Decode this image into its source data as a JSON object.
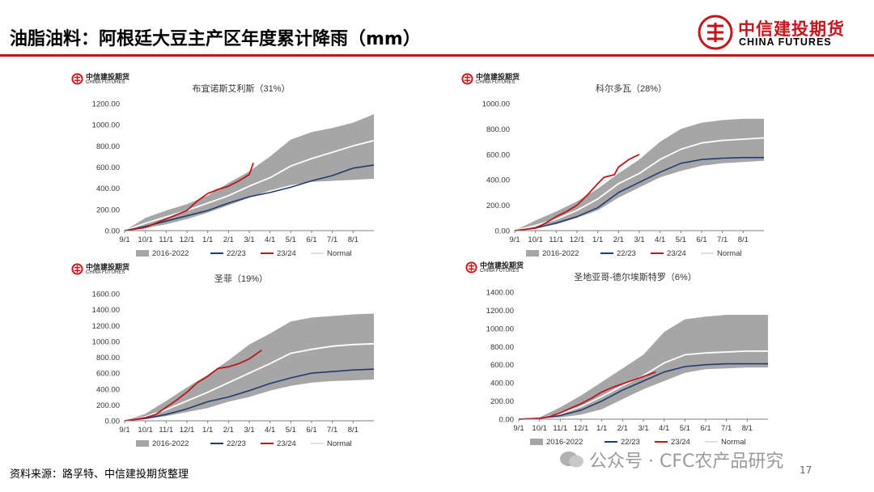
{
  "header": {
    "title": "油脂油料：阿根廷大豆主产区年度累计降雨（mm）",
    "brand_cn": "中信建投期货",
    "brand_en": "CHINA FUTURES",
    "accent": "#c3161c"
  },
  "mini_logo": {
    "cn": "中信建投期货",
    "en": "CHINA FUTURES"
  },
  "legend": {
    "band": "2016-2022",
    "s2223": "22/23",
    "s2324": "23/24",
    "normal": "Normal"
  },
  "colors": {
    "band": "#a6a6a6",
    "s2223": "#1f3b73",
    "s2324": "#c0141c",
    "normal": "#ffffff"
  },
  "x_ticks": [
    "9/1",
    "10/1",
    "11/1",
    "12/1",
    "1/1",
    "2/1",
    "3/1",
    "4/1",
    "5/1",
    "6/1",
    "7/1",
    "8/1"
  ],
  "chart_data": [
    {
      "type": "area",
      "title": "布宜诺斯艾利斯（31%）",
      "ylim": [
        0,
        1200
      ],
      "y_ticks": [
        "0.00",
        "200.00",
        "400.00",
        "600.00",
        "800.00",
        "1000.00",
        "1200.00"
      ],
      "x": [
        0,
        1,
        2,
        3,
        4,
        5,
        6,
        7,
        8,
        9,
        10,
        11,
        12
      ],
      "band_low": [
        0,
        25,
        60,
        110,
        170,
        240,
        310,
        380,
        430,
        460,
        470,
        480,
        490
      ],
      "band_high": [
        0,
        120,
        190,
        250,
        330,
        450,
        560,
        700,
        860,
        930,
        970,
        1020,
        1100
      ],
      "normal": [
        0,
        70,
        130,
        190,
        260,
        330,
        420,
        500,
        610,
        680,
        740,
        800,
        850
      ],
      "s2223": [
        0,
        40,
        90,
        140,
        190,
        260,
        320,
        360,
        410,
        470,
        520,
        590,
        620
      ],
      "s2324_x": [
        0,
        1,
        2,
        3,
        3.5,
        4,
        4.5,
        5,
        5.5,
        6,
        6.2
      ],
      "s2324": [
        0,
        30,
        110,
        190,
        280,
        350,
        390,
        420,
        470,
        530,
        640
      ]
    },
    {
      "type": "area",
      "title": "科尔多瓦（28%）",
      "ylim": [
        0,
        1000
      ],
      "y_ticks": [
        "0.00",
        "200.00",
        "400.00",
        "600.00",
        "800.00",
        "1000.00"
      ],
      "x": [
        0,
        1,
        2,
        3,
        4,
        5,
        6,
        7,
        8,
        9,
        10,
        11,
        12
      ],
      "band_low": [
        0,
        20,
        50,
        100,
        160,
        260,
        340,
        420,
        470,
        510,
        530,
        540,
        550
      ],
      "band_high": [
        0,
        80,
        150,
        230,
        330,
        450,
        560,
        700,
        800,
        850,
        870,
        880,
        880
      ],
      "normal": [
        0,
        40,
        90,
        160,
        250,
        370,
        450,
        560,
        640,
        690,
        710,
        720,
        730
      ],
      "s2223": [
        0,
        20,
        60,
        110,
        180,
        300,
        380,
        460,
        530,
        560,
        570,
        575,
        575
      ],
      "s2324_x": [
        0,
        1,
        1.5,
        2,
        2.5,
        3,
        3.5,
        4,
        4.3,
        4.8,
        5,
        5.5,
        6
      ],
      "s2324": [
        0,
        20,
        60,
        110,
        150,
        200,
        280,
        370,
        420,
        440,
        500,
        560,
        600
      ]
    },
    {
      "type": "area",
      "title": "圣菲（19%）",
      "ylim": [
        0,
        1600
      ],
      "y_ticks": [
        "0.00",
        "200.00",
        "400.00",
        "600.00",
        "800.00",
        "1000.00",
        "1200.00",
        "1400.00",
        "1600.00"
      ],
      "x": [
        0,
        1,
        2,
        3,
        4,
        5,
        6,
        7,
        8,
        9,
        10,
        11,
        12
      ],
      "band_low": [
        0,
        20,
        60,
        110,
        160,
        240,
        300,
        380,
        440,
        480,
        500,
        510,
        520
      ],
      "band_high": [
        0,
        90,
        250,
        420,
        580,
        760,
        960,
        1100,
        1250,
        1300,
        1320,
        1340,
        1350
      ],
      "normal": [
        0,
        50,
        140,
        250,
        360,
        480,
        600,
        720,
        850,
        900,
        940,
        960,
        970
      ],
      "s2223": [
        0,
        30,
        80,
        150,
        240,
        300,
        380,
        470,
        540,
        600,
        620,
        640,
        650
      ],
      "s2324_x": [
        0,
        1,
        1.5,
        2,
        2.5,
        3,
        3.5,
        4,
        4.5,
        5,
        5.5,
        6,
        6.6
      ],
      "s2324": [
        0,
        40,
        80,
        170,
        260,
        360,
        480,
        560,
        660,
        680,
        720,
        780,
        890
      ]
    },
    {
      "type": "area",
      "title": "圣地亚哥-德尔埃斯特罗（6%）",
      "ylim": [
        0,
        1400
      ],
      "y_ticks": [
        "0.00",
        "200.00",
        "400.00",
        "600.00",
        "800.00",
        "1000.00",
        "1200.00",
        "1400.00"
      ],
      "x": [
        0,
        1,
        2,
        3,
        4,
        5,
        6,
        7,
        8,
        9,
        10,
        11,
        12
      ],
      "band_low": [
        0,
        10,
        20,
        50,
        110,
        220,
        330,
        420,
        510,
        550,
        560,
        570,
        570
      ],
      "band_high": [
        0,
        20,
        130,
        260,
        410,
        560,
        710,
        960,
        1100,
        1130,
        1150,
        1150,
        1150
      ],
      "normal": [
        0,
        10,
        60,
        140,
        250,
        370,
        480,
        620,
        710,
        730,
        740,
        750,
        750
      ],
      "s2223": [
        0,
        10,
        40,
        100,
        200,
        320,
        420,
        520,
        580,
        600,
        610,
        610,
        610
      ],
      "s2324_x": [
        0,
        1,
        1.5,
        2,
        2.5,
        3,
        3.5,
        4,
        4.5,
        5,
        5.5,
        6.6
      ],
      "s2324": [
        0,
        10,
        30,
        70,
        120,
        170,
        230,
        300,
        350,
        390,
        430,
        520
      ]
    }
  ],
  "footer": {
    "source": "资料来源：路孚特、中信建投期货整理",
    "watermark": "公众号 · CFC农产品研究",
    "page": "17"
  }
}
